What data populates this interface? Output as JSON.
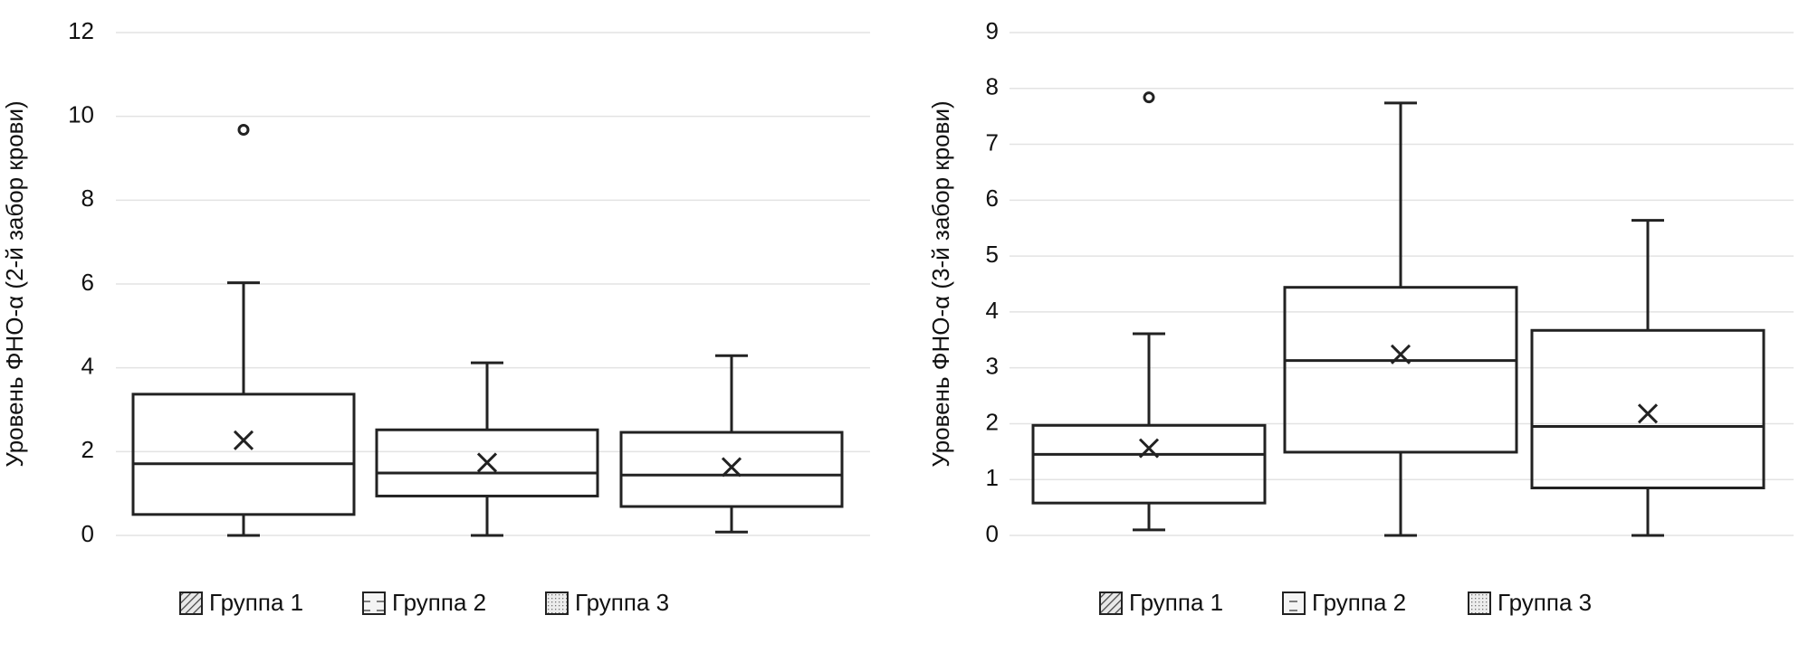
{
  "chart_data": [
    {
      "type": "box",
      "ylabel": "Уровень ФНО-α (2-й забор крови)",
      "ylim": [
        0,
        12
      ],
      "yticks": [
        0,
        2,
        4,
        6,
        8,
        10,
        12
      ],
      "grid": true,
      "series": [
        {
          "name": "Группа 1",
          "min": 0,
          "q1": 0.5,
          "median": 1.71,
          "q3": 3.37,
          "max": 6.03,
          "mean": 2.27,
          "outliers": [
            9.68
          ]
        },
        {
          "name": "Группа 2",
          "min": 0,
          "q1": 0.94,
          "median": 1.49,
          "q3": 2.52,
          "max": 4.12,
          "mean": 1.74,
          "outliers": []
        },
        {
          "name": "Группа 3",
          "min": 0.08,
          "q1": 0.69,
          "median": 1.44,
          "q3": 2.46,
          "max": 4.29,
          "mean": 1.63,
          "outliers": []
        }
      ]
    },
    {
      "type": "box",
      "ylabel": "Уровень ФНО-α (3-й забор крови)",
      "ylim": [
        0,
        9
      ],
      "yticks": [
        0,
        1,
        2,
        3,
        4,
        5,
        6,
        7,
        8,
        9
      ],
      "grid": true,
      "series": [
        {
          "name": "Группа 1",
          "min": 0.1,
          "q1": 0.58,
          "median": 1.45,
          "q3": 1.97,
          "max": 3.61,
          "mean": 1.56,
          "outliers": [
            7.84
          ]
        },
        {
          "name": "Группа 2",
          "min": 0,
          "q1": 1.49,
          "median": 3.13,
          "q3": 4.44,
          "max": 7.74,
          "mean": 3.24,
          "outliers": []
        },
        {
          "name": "Группа 3",
          "min": 0,
          "q1": 0.85,
          "median": 1.95,
          "q3": 3.67,
          "max": 5.64,
          "mean": 2.18,
          "outliers": []
        }
      ]
    }
  ]
}
